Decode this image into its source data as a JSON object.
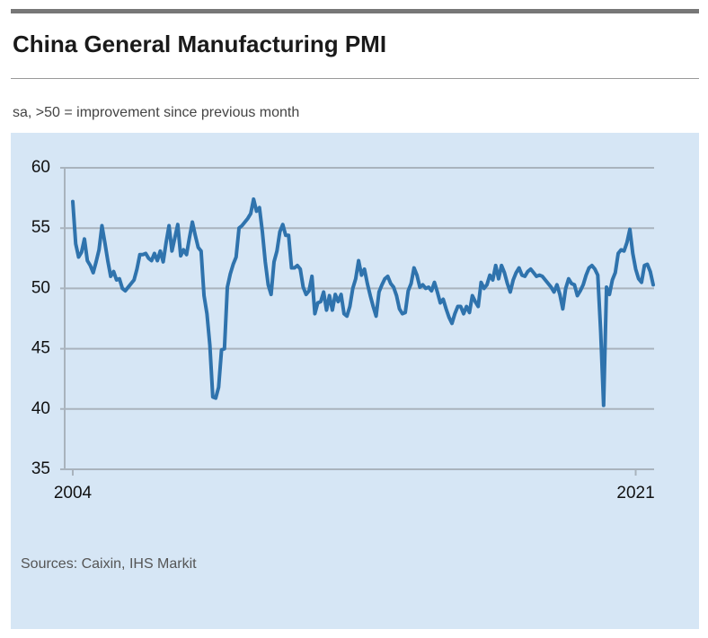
{
  "chart_data": {
    "type": "line",
    "title": "China General Manufacturing PMI",
    "subtitle": "sa, >50 = improvement since previous month",
    "source": "Sources: Caixin, IHS Markit",
    "color": "#2f73ad",
    "grid": true,
    "ylim": [
      35,
      60
    ],
    "yticks": [
      35,
      40,
      45,
      50,
      55,
      60
    ],
    "categories": [
      "2004",
      null,
      null,
      null,
      null,
      null,
      null,
      null,
      null,
      null,
      null,
      null,
      null,
      null,
      null,
      null,
      null,
      null,
      null,
      null,
      null,
      null,
      null,
      null,
      null,
      null,
      null,
      null,
      null,
      null,
      null,
      null,
      null,
      null,
      null,
      null,
      null,
      null,
      null,
      null,
      null,
      null,
      null,
      null,
      null,
      null,
      null,
      null,
      null,
      null,
      null,
      null,
      null,
      null,
      null,
      null,
      null,
      null,
      null,
      null,
      null,
      null,
      null,
      null,
      null,
      null,
      null,
      null,
      null,
      null,
      null,
      null,
      null,
      null,
      null,
      null,
      null,
      null,
      null,
      null,
      null,
      null,
      null,
      null,
      null,
      null,
      null,
      null,
      null,
      null,
      null,
      null,
      null,
      null,
      null,
      null,
      null,
      null,
      null,
      null,
      null,
      null,
      null,
      null,
      null,
      null,
      null,
      null,
      null,
      null,
      null,
      null,
      null,
      null,
      null,
      null,
      null,
      null,
      null,
      null,
      null,
      null,
      null,
      null,
      null,
      null,
      null,
      null,
      null,
      null,
      null,
      null,
      null,
      null,
      null,
      null,
      null,
      null,
      null,
      null,
      null,
      null,
      null,
      null,
      null,
      null,
      null,
      null,
      null,
      null,
      null,
      null,
      null,
      null,
      null,
      null,
      null,
      null,
      null,
      null,
      null,
      null,
      null,
      null,
      null,
      null,
      null,
      null,
      null,
      null,
      null,
      null,
      null,
      null,
      null,
      null,
      null,
      null,
      null,
      null,
      null,
      null,
      null,
      null,
      null,
      null,
      null,
      null,
      null,
      null,
      null,
      null,
      null,
      "2021",
      null,
      null,
      null,
      null,
      null,
      null
    ],
    "values": [
      57.2,
      53.7,
      52.6,
      53.0,
      54.1,
      52.3,
      51.9,
      51.3,
      52.2,
      53.2,
      55.2,
      53.8,
      52.3,
      51.0,
      51.4,
      50.7,
      50.8,
      50.0,
      49.8,
      50.1,
      50.4,
      50.7,
      51.6,
      52.8,
      52.8,
      52.9,
      52.5,
      52.3,
      52.9,
      52.3,
      53.1,
      52.2,
      53.8,
      55.2,
      53.1,
      54.2,
      55.3,
      52.7,
      53.2,
      52.8,
      54.2,
      55.5,
      54.4,
      53.4,
      53.1,
      49.4,
      47.9,
      45.3,
      41.0,
      40.9,
      41.8,
      44.9,
      45.0,
      50.1,
      51.2,
      52.0,
      52.6,
      55.0,
      55.2,
      55.5,
      55.8,
      56.2,
      57.4,
      56.4,
      56.7,
      54.7,
      52.2,
      50.3,
      49.5,
      52.2,
      53.1,
      54.7,
      55.3,
      54.4,
      54.4,
      51.7,
      51.7,
      51.9,
      51.6,
      50.1,
      49.5,
      49.8,
      51.0,
      47.9,
      48.8,
      48.9,
      49.7,
      48.2,
      49.4,
      48.2,
      49.5,
      48.9,
      49.5,
      47.9,
      47.7,
      48.5,
      50.0,
      50.8,
      52.3,
      51.1,
      51.6,
      50.4,
      49.4,
      48.5,
      47.7,
      49.7,
      50.3,
      50.8,
      51.0,
      50.4,
      50.1,
      49.4,
      48.3,
      47.9,
      48.0,
      49.8,
      50.4,
      51.7,
      51.1,
      50.1,
      50.3,
      50.0,
      50.1,
      49.8,
      50.5,
      49.7,
      48.8,
      49.1,
      48.3,
      47.6,
      47.1,
      47.9,
      48.5,
      48.5,
      47.9,
      48.5,
      48.0,
      49.4,
      48.9,
      48.5,
      50.5,
      50.0,
      50.3,
      51.1,
      50.7,
      51.9,
      50.8,
      51.9,
      51.3,
      50.4,
      49.7,
      50.7,
      51.3,
      51.7,
      51.1,
      51.0,
      51.4,
      51.6,
      51.3,
      51.0,
      51.1,
      51.0,
      50.7,
      50.4,
      50.1,
      49.7,
      50.3,
      49.5,
      48.3,
      50.0,
      50.8,
      50.4,
      50.3,
      49.4,
      49.8,
      50.3,
      51.1,
      51.7,
      51.9,
      51.6,
      51.1,
      46.4,
      40.3,
      50.1,
      49.5,
      50.7,
      51.3,
      52.9,
      53.2,
      53.1,
      53.8,
      54.9,
      52.9,
      51.6,
      50.8,
      50.5,
      51.9,
      52.0,
      51.4,
      50.3
    ]
  }
}
